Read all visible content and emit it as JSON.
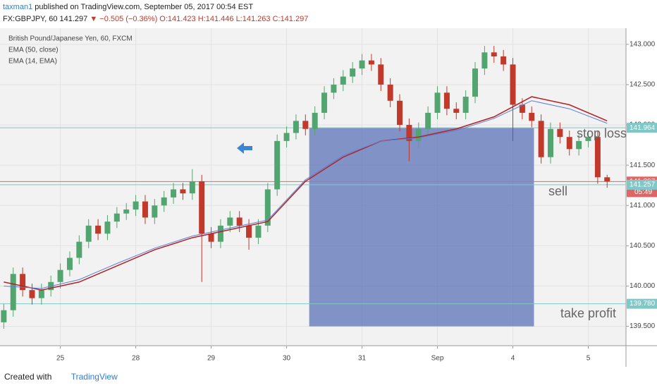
{
  "header": {
    "user": "taxman1",
    "published": "published on TradingView.com, September 05, 2017 00:54 EST",
    "symbol": "FX:GBPJPY, 60",
    "price": "141.297",
    "change": "▼ −0.505 (−0.36%)",
    "open": "O:141.423",
    "high": "H:141.446",
    "low": "L:141.263",
    "close": "C:141.297"
  },
  "chart_data": {
    "type": "candlestick",
    "legend": [
      "British Pound/Japanese Yen, 60, FXCM",
      "EMA (50, close)",
      "EMA (14, EMA)"
    ],
    "xlim": [
      -0.8,
      7.5
    ],
    "xticks": [
      {
        "value": 0,
        "label": "25"
      },
      {
        "value": 1,
        "label": "28"
      },
      {
        "value": 2,
        "label": "29"
      },
      {
        "value": 3,
        "label": "30"
      },
      {
        "value": 4,
        "label": "31"
      },
      {
        "value": 5,
        "label": "Sep"
      },
      {
        "value": 6,
        "label": "4"
      },
      {
        "value": 7,
        "label": "5"
      }
    ],
    "ylim": [
      139.26,
      143.2
    ],
    "yticks": [
      {
        "value": 139.5,
        "label": "139.500"
      },
      {
        "value": 140,
        "label": "140.000"
      },
      {
        "value": 140.5,
        "label": "140.500"
      },
      {
        "value": 141,
        "label": "141.000"
      },
      {
        "value": 141.5,
        "label": "141.500"
      },
      {
        "value": 142,
        "label": "142.000"
      },
      {
        "value": 142.5,
        "label": "142.500"
      },
      {
        "value": 143,
        "label": "143.000"
      }
    ],
    "x": [
      -0.75,
      -0.625,
      -0.5,
      -0.375,
      -0.25,
      -0.125,
      0,
      0.125,
      0.25,
      0.375,
      0.5,
      0.625,
      0.75,
      0.875,
      1,
      1.125,
      1.25,
      1.375,
      1.5,
      1.625,
      1.75,
      1.875,
      2,
      2.125,
      2.25,
      2.375,
      2.5,
      2.625,
      2.75,
      2.875,
      3,
      3.125,
      3.25,
      3.375,
      3.5,
      3.625,
      3.75,
      3.875,
      4,
      4.125,
      4.25,
      4.375,
      4.5,
      4.625,
      4.75,
      4.875,
      5,
      5.125,
      5.25,
      5.375,
      5.5,
      5.625,
      5.75,
      5.875,
      6,
      6.125,
      6.25,
      6.375,
      6.5,
      6.625,
      6.75,
      6.875,
      7,
      7.125,
      7.25
    ],
    "up_color": "#53a56f",
    "down_color": "#c0392b",
    "open": [
      139.55,
      139.7,
      140.15,
      139.95,
      139.85,
      139.95,
      140.05,
      140.2,
      140.35,
      140.55,
      140.75,
      140.65,
      140.8,
      140.9,
      140.95,
      141.05,
      140.85,
      141.0,
      141.1,
      141.2,
      141.15,
      141.3,
      140.65,
      140.55,
      140.75,
      140.85,
      140.75,
      140.6,
      140.75,
      141.2,
      141.8,
      141.9,
      142.05,
      141.95,
      142.15,
      142.4,
      142.5,
      142.6,
      142.7,
      142.8,
      142.75,
      142.5,
      142.3,
      142.0,
      141.8,
      141.95,
      142.15,
      142.4,
      142.2,
      142.15,
      142.35,
      142.7,
      142.9,
      142.85,
      142.75,
      142.25,
      142.15,
      142.05,
      141.6,
      141.95,
      141.85,
      141.7,
      141.8,
      141.85,
      141.35
    ],
    "high": [
      139.78,
      140.23,
      140.23,
      140.03,
      140.03,
      140.13,
      140.28,
      140.43,
      140.63,
      140.83,
      140.83,
      140.88,
      140.98,
      141.03,
      141.13,
      141.13,
      141.08,
      141.18,
      141.28,
      141.28,
      141.45,
      141.38,
      140.73,
      140.83,
      140.93,
      140.93,
      140.83,
      140.83,
      141.28,
      141.88,
      141.98,
      142.13,
      142.13,
      142.23,
      142.48,
      142.58,
      142.68,
      142.78,
      142.88,
      142.88,
      142.83,
      142.58,
      142.38,
      142.08,
      142.03,
      142.23,
      142.48,
      142.48,
      142.28,
      142.43,
      142.78,
      142.98,
      142.98,
      142.93,
      142.83,
      142.33,
      142.23,
      142.13,
      142.03,
      142.03,
      141.93,
      141.88,
      141.93,
      141.93,
      141.38
    ],
    "low": [
      139.47,
      139.62,
      139.87,
      139.77,
      139.77,
      139.87,
      139.97,
      140.12,
      140.27,
      140.47,
      140.57,
      140.57,
      140.72,
      140.82,
      140.87,
      140.77,
      140.77,
      140.92,
      141.02,
      141.07,
      141.07,
      140.05,
      140.47,
      140.47,
      140.67,
      140.67,
      140.45,
      140.52,
      140.67,
      141.12,
      141.72,
      141.82,
      141.87,
      141.87,
      142.07,
      142.32,
      142.42,
      142.52,
      142.62,
      142.67,
      142.42,
      142.22,
      141.92,
      141.55,
      141.72,
      141.87,
      142.07,
      142.12,
      142.07,
      142.07,
      142.27,
      142.62,
      142.77,
      142.67,
      141.8,
      142.07,
      141.97,
      141.52,
      141.52,
      141.77,
      141.62,
      141.62,
      141.72,
      141.27,
      141.22
    ],
    "close": [
      139.7,
      140.15,
      139.95,
      139.85,
      139.95,
      140.05,
      140.2,
      140.35,
      140.55,
      140.75,
      140.65,
      140.8,
      140.9,
      140.95,
      141.05,
      140.85,
      141.0,
      141.1,
      141.2,
      141.15,
      141.3,
      140.65,
      140.55,
      140.75,
      140.85,
      140.75,
      140.6,
      140.75,
      141.2,
      141.8,
      141.9,
      142.05,
      141.95,
      142.15,
      142.4,
      142.5,
      142.6,
      142.7,
      142.8,
      142.75,
      142.5,
      142.3,
      142.0,
      141.8,
      141.95,
      142.15,
      142.4,
      142.2,
      142.15,
      142.35,
      142.7,
      142.9,
      142.85,
      142.75,
      142.25,
      142.15,
      142.05,
      141.6,
      141.95,
      141.85,
      141.7,
      141.8,
      141.85,
      141.35,
      141.3
    ],
    "indicators": [
      {
        "color": "#b22222",
        "x": [
          -0.75,
          -0.25,
          0.25,
          0.75,
          1.25,
          1.75,
          2.25,
          2.75,
          3.25,
          3.75,
          4.25,
          4.75,
          5.25,
          5.75,
          6.25,
          6.75,
          7.25
        ],
        "values": [
          140.05,
          139.95,
          140.05,
          140.25,
          140.45,
          140.6,
          140.7,
          140.8,
          141.3,
          141.6,
          141.8,
          141.85,
          141.95,
          142.1,
          142.35,
          142.25,
          142.05
        ]
      },
      {
        "color": "#5b7fd6",
        "x": [
          -0.75,
          -0.25,
          0.25,
          0.75,
          1.25,
          1.75,
          2.25,
          2.75,
          3.25,
          3.75,
          4.25,
          4.75,
          5.25,
          5.75,
          6.25,
          6.75,
          7.25
        ],
        "values": [
          140.0,
          139.97,
          140.08,
          140.28,
          140.47,
          140.62,
          140.72,
          140.82,
          141.32,
          141.62,
          141.8,
          141.84,
          141.93,
          142.08,
          142.3,
          142.2,
          142.02
        ]
      }
    ],
    "box": {
      "x": [
        3.3,
        6.28
      ],
      "y": [
        139.5,
        141.964
      ],
      "color": "#5b72b8"
    },
    "levels": [
      {
        "price": 141.964,
        "color": "#7fc8c8"
      },
      {
        "price": 141.297,
        "color": "#e06666",
        "countdown": "05:49"
      },
      {
        "price": 141.257,
        "color": "#7fc8c8"
      },
      {
        "price": 139.78,
        "label": "139.780",
        "color": "#7fc8c8"
      }
    ],
    "annotations": [
      "stop loss",
      "sell",
      "take profit"
    ]
  },
  "footer": {
    "created": "Created with",
    "brand": "TradingView"
  }
}
